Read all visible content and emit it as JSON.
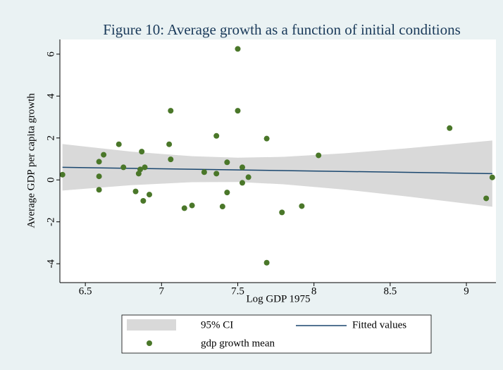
{
  "chart_data": {
    "type": "scatter",
    "title": "Figure 10: Average growth as a function of initial conditions",
    "x_label": "Log GDP 1975",
    "y_label": "Average GDP per capita growth",
    "xlim": [
      6.333,
      9.194
    ],
    "ylim": [
      -4.9,
      6.7
    ],
    "xticks": [
      6.5,
      7,
      7.5,
      8,
      8.5,
      9
    ],
    "yticks": [
      6,
      4,
      2,
      0,
      -2,
      -4
    ],
    "series": [
      {
        "name": "95% CI",
        "kind": "band",
        "color": "#d9d9d9",
        "x": [
          6.35,
          6.8,
          7.2,
          7.5,
          7.8,
          8.2,
          8.6,
          9.17
        ],
        "low": [
          -0.51,
          -0.25,
          -0.11,
          -0.1,
          -0.21,
          -0.46,
          -0.78,
          -1.28
        ],
        "high": [
          1.71,
          1.35,
          1.13,
          1.06,
          1.1,
          1.27,
          1.5,
          1.88
        ]
      },
      {
        "name": "Fitted values",
        "kind": "line",
        "color": "#1a476f",
        "x": [
          6.35,
          9.17
        ],
        "values": [
          0.6,
          0.3
        ]
      },
      {
        "name": "gdp growth mean",
        "kind": "points",
        "color": "#4a7729",
        "x": [
          6.35,
          6.59,
          6.62,
          6.59,
          6.59,
          6.72,
          6.75,
          6.83,
          6.87,
          6.86,
          6.85,
          6.89,
          6.88,
          6.92,
          7.05,
          7.06,
          7.06,
          7.15,
          7.2,
          7.28,
          7.36,
          7.36,
          7.4,
          7.43,
          7.43,
          7.5,
          7.5,
          7.53,
          7.53,
          7.57,
          7.69,
          7.69,
          7.79,
          7.92,
          8.03,
          8.89,
          9.13,
          9.17
        ],
        "values": [
          0.25,
          0.87,
          1.2,
          0.17,
          -0.47,
          1.7,
          0.6,
          -0.55,
          1.35,
          0.5,
          0.3,
          0.6,
          -1.0,
          -0.7,
          1.7,
          3.3,
          0.98,
          -1.35,
          -1.22,
          0.37,
          2.1,
          0.3,
          -1.27,
          0.84,
          -0.6,
          6.25,
          3.3,
          0.6,
          -0.14,
          0.13,
          1.97,
          -3.95,
          -1.55,
          -1.25,
          1.17,
          2.47,
          -0.88,
          0.12
        ]
      }
    ]
  }
}
